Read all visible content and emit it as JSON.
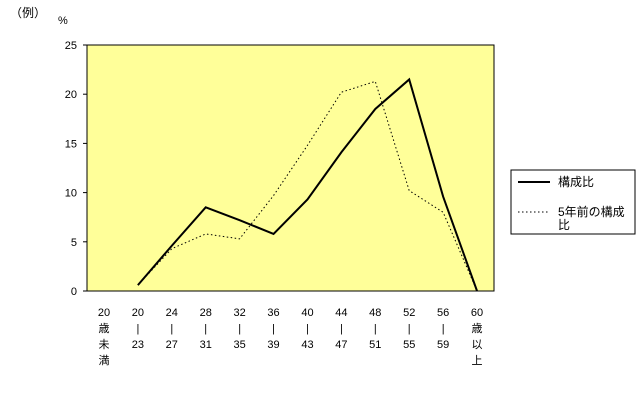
{
  "header": {
    "example_label": "（例）",
    "unit_label": "%"
  },
  "chart_data": {
    "type": "line",
    "title": "",
    "xlabel": "",
    "ylabel": "%",
    "ylim": [
      0,
      25
    ],
    "yticks": [
      0,
      5,
      10,
      15,
      20,
      25
    ],
    "grid": false,
    "legend_position": "right",
    "categories": [
      [
        "20",
        "歳",
        "未",
        "満"
      ],
      [
        "20",
        "|",
        "23"
      ],
      [
        "24",
        "|",
        "27"
      ],
      [
        "28",
        "|",
        "31"
      ],
      [
        "32",
        "|",
        "35"
      ],
      [
        "36",
        "|",
        "39"
      ],
      [
        "40",
        "|",
        "43"
      ],
      [
        "44",
        "|",
        "47"
      ],
      [
        "48",
        "|",
        "51"
      ],
      [
        "52",
        "|",
        "55"
      ],
      [
        "56",
        "|",
        "59"
      ],
      [
        "60",
        "歳",
        "以",
        "上"
      ]
    ],
    "series": [
      {
        "name": "構成比",
        "style": "solid",
        "values": [
          null,
          0.6,
          4.6,
          8.5,
          7.2,
          5.8,
          9.3,
          14.1,
          18.5,
          21.5,
          9.6,
          0.0
        ]
      },
      {
        "name": "5年前の構成比",
        "style": "dotted",
        "values": [
          null,
          0.6,
          4.3,
          5.8,
          5.3,
          9.7,
          14.8,
          20.2,
          21.3,
          10.2,
          8.0,
          0.0
        ]
      }
    ],
    "colors": {
      "plot_background": "#ffff99",
      "series_line": "#000000"
    }
  }
}
